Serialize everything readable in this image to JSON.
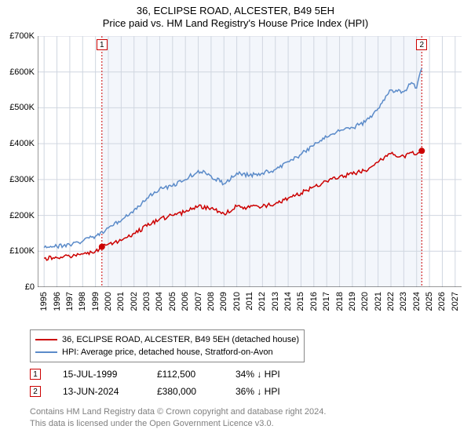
{
  "title": "36, ECLIPSE ROAD, ALCESTER, B49 5EH",
  "subtitle": "Price paid vs. HM Land Registry's House Price Index (HPI)",
  "chart": {
    "type": "line",
    "background_color": "#ffffff",
    "plot_background_color": "#f3f6fb",
    "plot_background_xmin": 1999.5,
    "plot_background_xmax": 2024.4,
    "grid_color": "#d0d6e0",
    "axis_color": "#333333",
    "tick_fontsize": 11,
    "xlim": [
      1994.5,
      2027.5
    ],
    "ylim": [
      0,
      700000
    ],
    "ytick_step": 100000,
    "y_ticks": [
      "£0",
      "£100K",
      "£200K",
      "£300K",
      "£400K",
      "£500K",
      "£600K",
      "£700K"
    ],
    "x_ticks": [
      1995,
      1996,
      1997,
      1998,
      1999,
      2000,
      2001,
      2002,
      2003,
      2004,
      2005,
      2006,
      2007,
      2008,
      2009,
      2010,
      2011,
      2012,
      2013,
      2014,
      2015,
      2016,
      2017,
      2018,
      2019,
      2020,
      2021,
      2022,
      2023,
      2024,
      2025,
      2026,
      2027
    ],
    "series": [
      {
        "name": "price_paid",
        "label": "36, ECLIPSE ROAD, ALCESTER, B49 5EH (detached house)",
        "color": "#cc0000",
        "line_width": 1.5,
        "points": [
          [
            1995.0,
            80000
          ],
          [
            1996.0,
            82000
          ],
          [
            1997.0,
            85000
          ],
          [
            1998.0,
            92000
          ],
          [
            1999.0,
            100000
          ],
          [
            1999.5,
            112500
          ],
          [
            2000.0,
            120000
          ],
          [
            2001.0,
            130000
          ],
          [
            2002.0,
            150000
          ],
          [
            2003.0,
            170000
          ],
          [
            2004.0,
            190000
          ],
          [
            2005.0,
            200000
          ],
          [
            2006.0,
            210000
          ],
          [
            2007.0,
            225000
          ],
          [
            2008.0,
            220000
          ],
          [
            2009.0,
            205000
          ],
          [
            2010.0,
            225000
          ],
          [
            2011.0,
            222000
          ],
          [
            2012.0,
            225000
          ],
          [
            2013.0,
            232000
          ],
          [
            2014.0,
            248000
          ],
          [
            2015.0,
            262000
          ],
          [
            2016.0,
            280000
          ],
          [
            2017.0,
            295000
          ],
          [
            2018.0,
            308000
          ],
          [
            2019.0,
            315000
          ],
          [
            2020.0,
            325000
          ],
          [
            2021.0,
            348000
          ],
          [
            2022.0,
            372000
          ],
          [
            2023.0,
            365000
          ],
          [
            2023.7,
            378000
          ],
          [
            2024.0,
            370000
          ],
          [
            2024.4,
            380000
          ]
        ]
      },
      {
        "name": "hpi",
        "label": "HPI: Average price, detached house, Stratford-on-Avon",
        "color": "#5b8bc9",
        "line_width": 1.5,
        "points": [
          [
            1995.0,
            110000
          ],
          [
            1996.0,
            113000
          ],
          [
            1997.0,
            118000
          ],
          [
            1998.0,
            128000
          ],
          [
            1999.0,
            142000
          ],
          [
            2000.0,
            165000
          ],
          [
            2001.0,
            185000
          ],
          [
            2002.0,
            215000
          ],
          [
            2003.0,
            248000
          ],
          [
            2004.0,
            275000
          ],
          [
            2005.0,
            282000
          ],
          [
            2006.0,
            300000
          ],
          [
            2007.0,
            325000
          ],
          [
            2008.0,
            310000
          ],
          [
            2009.0,
            288000
          ],
          [
            2010.0,
            318000
          ],
          [
            2011.0,
            312000
          ],
          [
            2012.0,
            318000
          ],
          [
            2013.0,
            328000
          ],
          [
            2014.0,
            350000
          ],
          [
            2015.0,
            370000
          ],
          [
            2016.0,
            395000
          ],
          [
            2017.0,
            418000
          ],
          [
            2018.0,
            435000
          ],
          [
            2019.0,
            445000
          ],
          [
            2020.0,
            460000
          ],
          [
            2021.0,
            498000
          ],
          [
            2022.0,
            550000
          ],
          [
            2023.0,
            545000
          ],
          [
            2023.6,
            570000
          ],
          [
            2024.0,
            555000
          ],
          [
            2024.4,
            610000
          ]
        ]
      }
    ],
    "sale_markers": [
      {
        "n": "1",
        "x": 1999.5,
        "y": 112500,
        "vline_color": "#cc0000"
      },
      {
        "n": "2",
        "x": 2024.4,
        "y": 380000,
        "vline_color": "#cc0000"
      }
    ],
    "noise_amp": 6000
  },
  "legend": {
    "border_color": "#888888",
    "fontsize": 11
  },
  "sales_table": {
    "rows": [
      {
        "n": "1",
        "date": "15-JUL-1999",
        "price": "£112,500",
        "pct": "34% ↓ HPI"
      },
      {
        "n": "2",
        "date": "13-JUN-2024",
        "price": "£380,000",
        "pct": "36% ↓ HPI"
      }
    ]
  },
  "footer_line1": "Contains HM Land Registry data © Crown copyright and database right 2024.",
  "footer_line2": "This data is licensed under the Open Government Licence v3.0."
}
